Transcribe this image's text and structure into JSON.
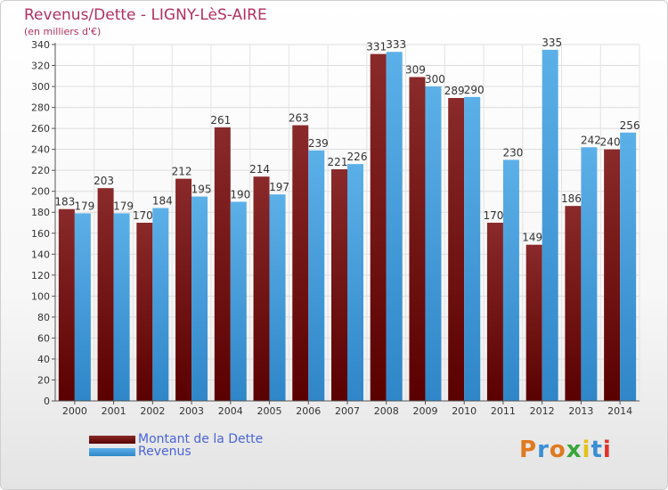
{
  "title": "Revenus/Dette - LIGNY-LèS-AIRE",
  "subtitle": "(en milliers d'€)",
  "colors": {
    "title": "#b03060",
    "dette": "#7a1a1a",
    "revenus": "#4aa3e0",
    "legend_text": "#4a64d8",
    "grid": "#dddddd"
  },
  "logo": {
    "text": "Proxiti"
  },
  "chart_data": {
    "type": "bar",
    "title": "Revenus/Dette - LIGNY-LèS-AIRE",
    "ylabel": "(en milliers d'€)",
    "xlabel": "",
    "ylim": [
      0,
      340
    ],
    "ytick_step": 20,
    "grid": true,
    "legend_position": "bottom-left",
    "categories": [
      "2000",
      "2001",
      "2002",
      "2003",
      "2004",
      "2005",
      "2006",
      "2007",
      "2008",
      "2009",
      "2010",
      "2011",
      "2012",
      "2013",
      "2014"
    ],
    "series": [
      {
        "name": "Montant de la Dette",
        "values": [
          183,
          203,
          170,
          212,
          261,
          214,
          263,
          221,
          331,
          309,
          289,
          170,
          149,
          186,
          240
        ]
      },
      {
        "name": "Revenus",
        "values": [
          179,
          179,
          184,
          195,
          190,
          197,
          239,
          226,
          333,
          300,
          290,
          230,
          335,
          242,
          256
        ]
      }
    ]
  }
}
